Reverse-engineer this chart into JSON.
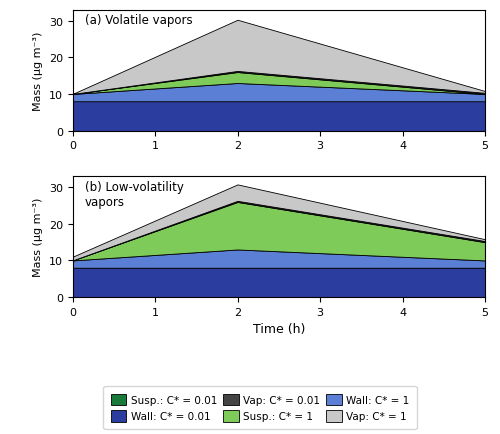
{
  "colors": {
    "susp_c001": "#1a7a3a",
    "susp_c1": "#7ecb5a",
    "wall_c001": "#2b3d9e",
    "wall_c1": "#5b7fd4",
    "vap_c001": "#444444",
    "vap_c1": "#c8c8c8"
  },
  "title_a": "(a) Volatile vapors",
  "title_b": "(b) Low-volatility\nvapors",
  "ylabel": "Mass (μg m⁻³)",
  "xlabel": "Time (h)",
  "ylim": [
    0,
    33
  ],
  "xlim": [
    0,
    5
  ],
  "yticks": [
    0,
    10,
    20,
    30
  ],
  "xticks": [
    0,
    1,
    2,
    3,
    4,
    5
  ],
  "legend_labels": [
    "Susp.: C* = 0.01",
    "Wall: C* = 0.01",
    "Vap: C* = 0.01",
    "Susp.: C* = 1",
    "Wall: C* = 1",
    "Vap: C* = 1"
  ],
  "legend_colors": [
    "#1a7a3a",
    "#2b3d9e",
    "#444444",
    "#7ecb5a",
    "#5b7fd4",
    "#c8c8c8"
  ]
}
